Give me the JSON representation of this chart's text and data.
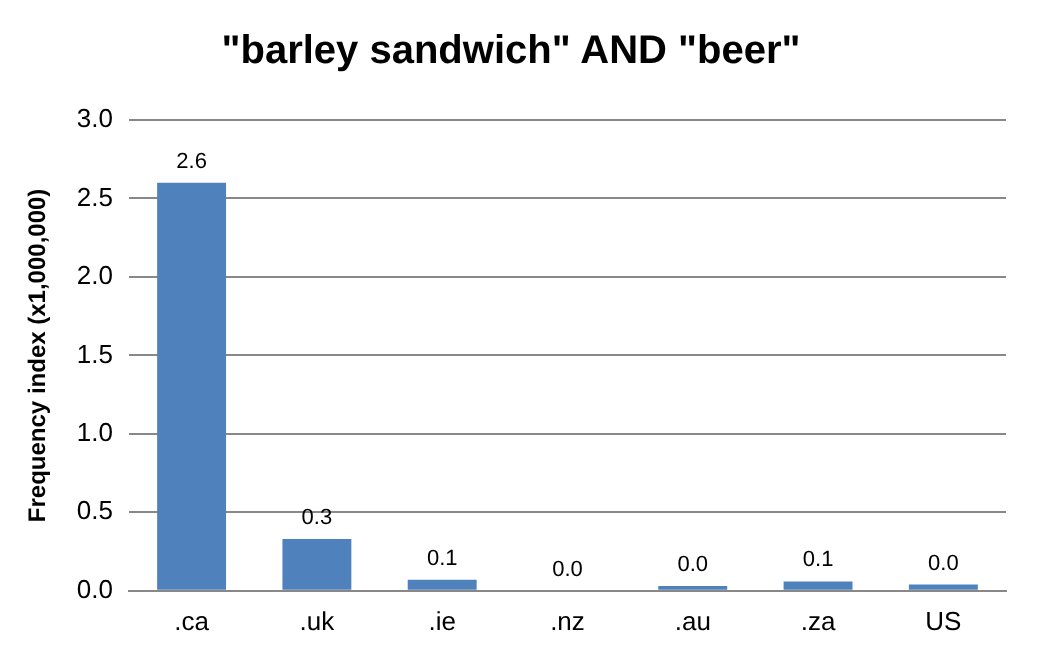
{
  "chart_data": {
    "type": "bar",
    "title": "\"barley sandwich\" AND \"beer\"",
    "ylabel": "Frequency index (x1,000,000)",
    "categories": [
      ".ca",
      ".uk",
      ".ie",
      ".nz",
      ".au",
      ".za",
      "US"
    ],
    "values": [
      2.6,
      0.33,
      0.07,
      0.0,
      0.03,
      0.06,
      0.04
    ],
    "value_labels": [
      "2.6",
      "0.3",
      "0.1",
      "0.0",
      "0.0",
      "0.1",
      "0.0"
    ],
    "color": "#4f81bd",
    "ylim": [
      0,
      3
    ],
    "yticks": [
      {
        "value": 0,
        "label": "0.0"
      },
      {
        "value": 0.5,
        "label": "0.5"
      },
      {
        "value": 1,
        "label": "1.0"
      },
      {
        "value": 1.5,
        "label": "1.5"
      },
      {
        "value": 2,
        "label": "2.0"
      },
      {
        "value": 2.5,
        "label": "2.5"
      },
      {
        "value": 3,
        "label": "3.0"
      }
    ],
    "grid": "y",
    "legend": false
  }
}
